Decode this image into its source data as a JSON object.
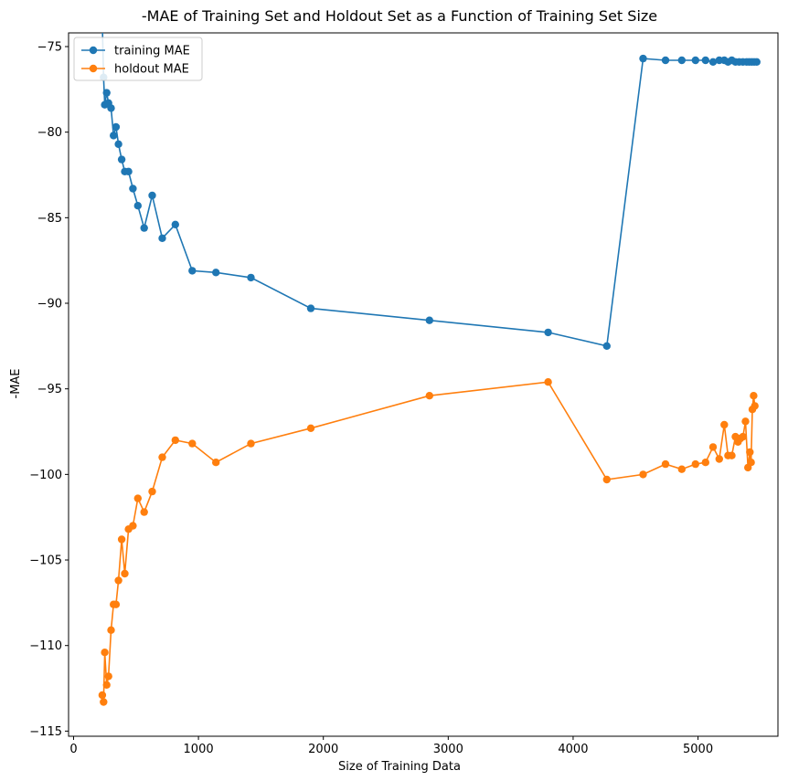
{
  "chart_data": {
    "type": "line",
    "title": "-MAE of Training Set and Holdout Set as a Function of Training Set Size",
    "xlabel": "Size of Training Data",
    "ylabel": "-MAE",
    "xlim": [
      -40,
      5640
    ],
    "ylim": [
      -115.3,
      -74.2
    ],
    "x_ticks": [
      0,
      1000,
      2000,
      3000,
      4000,
      5000
    ],
    "y_ticks": [
      -75,
      -80,
      -85,
      -90,
      -95,
      -100,
      -105,
      -110,
      -115
    ],
    "grid": false,
    "legend_position": "top-left",
    "series": [
      {
        "name": "training MAE",
        "color": "#1f77b4",
        "marker": "circle",
        "x": [
          230,
          240,
          250,
          265,
          280,
          300,
          320,
          340,
          360,
          385,
          410,
          440,
          475,
          515,
          565,
          630,
          710,
          815,
          950,
          1140,
          1420,
          1900,
          2850,
          3800,
          4270,
          4560,
          4740,
          4870,
          4980,
          5060,
          5120,
          5170,
          5210,
          5240,
          5270,
          5300,
          5330,
          5360,
          5390,
          5410,
          5430,
          5450,
          5470
        ],
        "y": [
          -73.6,
          -76.8,
          -78.4,
          -77.7,
          -78.3,
          -78.6,
          -80.2,
          -79.7,
          -80.7,
          -81.6,
          -82.3,
          -82.3,
          -83.3,
          -84.3,
          -85.6,
          -83.7,
          -86.2,
          -85.4,
          -88.1,
          -88.2,
          -88.5,
          -90.3,
          -91.0,
          -91.7,
          -92.5,
          -75.7,
          -75.8,
          -75.8,
          -75.8,
          -75.8,
          -75.9,
          -75.8,
          -75.8,
          -75.9,
          -75.8,
          -75.9,
          -75.9,
          -75.9,
          -75.9,
          -75.9,
          -75.9,
          -75.9,
          -75.9
        ]
      },
      {
        "name": "holdout MAE",
        "color": "#ff7f0e",
        "marker": "circle",
        "x": [
          230,
          240,
          250,
          265,
          280,
          300,
          320,
          340,
          360,
          385,
          410,
          440,
          475,
          515,
          565,
          630,
          710,
          815,
          950,
          1140,
          1420,
          1900,
          2850,
          3800,
          4270,
          4560,
          4740,
          4870,
          4980,
          5060,
          5120,
          5170,
          5210,
          5240,
          5270,
          5300,
          5320,
          5340,
          5360,
          5380,
          5400,
          5415,
          5425,
          5435,
          5445,
          5455
        ],
        "y": [
          -112.9,
          -113.3,
          -110.4,
          -112.3,
          -111.8,
          -109.1,
          -107.6,
          -107.6,
          -106.2,
          -103.8,
          -105.8,
          -103.2,
          -103.0,
          -101.4,
          -102.2,
          -101.0,
          -99.0,
          -98.0,
          -98.2,
          -99.3,
          -98.2,
          -97.3,
          -95.4,
          -94.6,
          -100.3,
          -100.0,
          -99.4,
          -99.7,
          -99.4,
          -99.3,
          -98.4,
          -99.1,
          -97.1,
          -98.9,
          -98.9,
          -97.8,
          -98.1,
          -97.9,
          -97.8,
          -96.9,
          -99.6,
          -98.7,
          -99.3,
          -96.2,
          -95.4,
          -96.0
        ]
      }
    ]
  }
}
